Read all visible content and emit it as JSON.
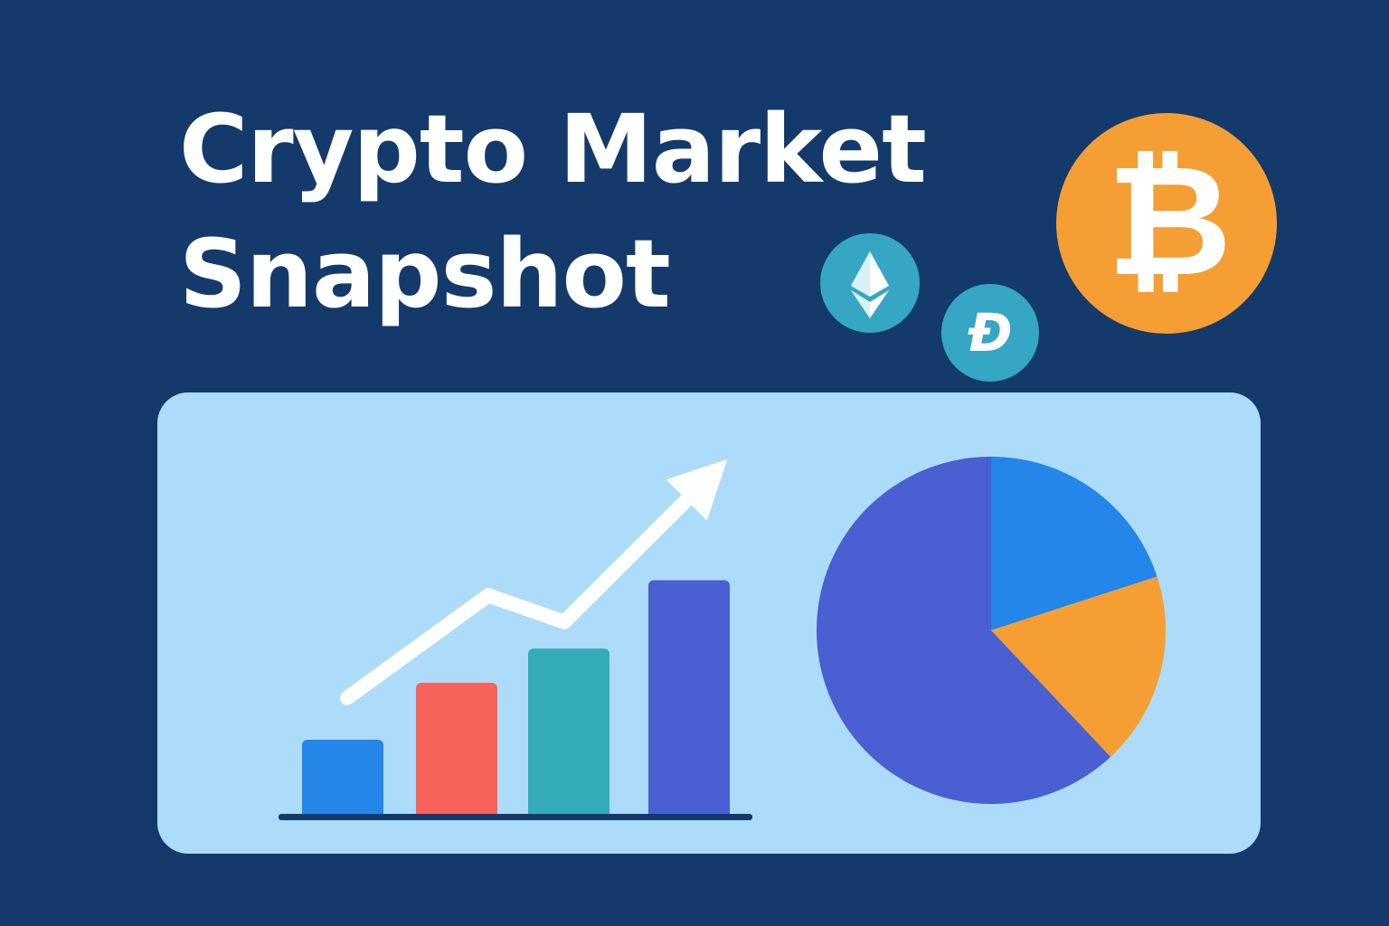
{
  "header": {
    "title_line1": "Crypto Market",
    "title_line2": "Snapshot"
  },
  "coins": [
    {
      "name": "bitcoin",
      "icon": "bitcoin-icon",
      "glyph": "₿",
      "color": "#f59e33"
    },
    {
      "name": "ethereum",
      "icon": "ethereum-icon",
      "color": "#35a6c3"
    },
    {
      "name": "dogecoin",
      "icon": "dogecoin-icon",
      "glyph": "Ð",
      "color": "#35a6c3"
    }
  ],
  "chart_data": [
    {
      "type": "bar",
      "categories": [
        "",
        "",
        "",
        ""
      ],
      "values": [
        1,
        1.75,
        2.2,
        3.1
      ],
      "colors": [
        "#2386e8",
        "#f7625a",
        "#33acb8",
        "#4a5fd1"
      ],
      "trend": [
        1.55,
        2.9,
        2.55,
        4.45
      ],
      "ylim": [
        0,
        4.5
      ]
    },
    {
      "type": "pie",
      "values": [
        20,
        18,
        62
      ],
      "colors": [
        "#2386e8",
        "#f59e33",
        "#4a5fd1"
      ]
    }
  ]
}
